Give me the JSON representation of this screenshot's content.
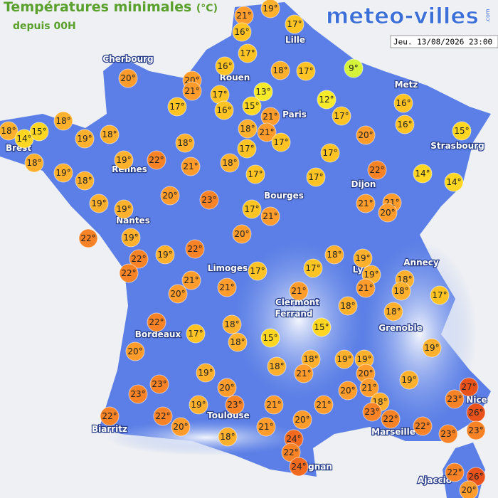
{
  "title": "Températures minimales",
  "unit": "(°C)",
  "subtitle": "depuis 00H",
  "logo": "meteo-villes",
  "logo_suffix": ".com",
  "datetime": "Jeu. 13/08/2026 23:00",
  "cities": [
    "Lille",
    "Cherbourg",
    "Rouen",
    "Paris",
    "Metz",
    "Strasbourg",
    "Brest",
    "Rennes",
    "Dijon",
    "Bourges",
    "Nantes",
    "Limoges",
    "Ly",
    "Annecy",
    "Clermont",
    "Ferrand",
    "Grenoble",
    "Bordeaux",
    "Toulouse",
    "Biarritz",
    "Marseille",
    "Nice",
    "ignan",
    "Ajaccio"
  ],
  "markers": [
    {
      "value": 21,
      "label": "21°"
    },
    {
      "value": 19,
      "label": "19°"
    },
    {
      "value": 17,
      "label": "17°"
    },
    {
      "value": 16,
      "label": "16°"
    },
    {
      "value": 17,
      "label": "17°"
    },
    {
      "value": 16,
      "label": "16°"
    },
    {
      "value": 20,
      "label": "20°"
    },
    {
      "value": 21,
      "label": "21°"
    },
    {
      "value": 17,
      "label": "17°"
    },
    {
      "value": 16,
      "label": "16°"
    },
    {
      "value": 13,
      "label": "13°"
    },
    {
      "value": 15,
      "label": "15°"
    },
    {
      "value": 18,
      "label": "18°"
    },
    {
      "value": 17,
      "label": "17°"
    },
    {
      "value": 9,
      "label": "9°"
    },
    {
      "value": 12,
      "label": "12°"
    },
    {
      "value": 21,
      "label": "21°"
    },
    {
      "value": 21,
      "label": "21°"
    },
    {
      "value": 18,
      "label": "18°"
    },
    {
      "value": 17,
      "label": "17°"
    },
    {
      "value": 17,
      "label": "17°"
    },
    {
      "value": 17,
      "label": "17°"
    },
    {
      "value": 20,
      "label": "20°"
    },
    {
      "value": 16,
      "label": "16°"
    },
    {
      "value": 16,
      "label": "16°"
    },
    {
      "value": 15,
      "label": "15°"
    },
    {
      "value": 17,
      "label": "17°"
    },
    {
      "value": 20,
      "label": "20°"
    },
    {
      "value": 18,
      "label": "18°"
    },
    {
      "value": 14,
      "label": "14°"
    },
    {
      "value": 15,
      "label": "15°"
    },
    {
      "value": 18,
      "label": "18°"
    },
    {
      "value": 19,
      "label": "19°"
    },
    {
      "value": 18,
      "label": "18°"
    },
    {
      "value": 18,
      "label": "18°"
    },
    {
      "value": 19,
      "label": "19°"
    },
    {
      "value": 22,
      "label": "22°"
    },
    {
      "value": 18,
      "label": "18°"
    },
    {
      "value": 21,
      "label": "21°"
    },
    {
      "value": 18,
      "label": "18°"
    },
    {
      "value": 17,
      "label": "17°"
    },
    {
      "value": 17,
      "label": "17°"
    },
    {
      "value": 17,
      "label": "17°"
    },
    {
      "value": 22,
      "label": "22°"
    },
    {
      "value": 14,
      "label": "14°"
    },
    {
      "value": 14,
      "label": "14°"
    },
    {
      "value": 19,
      "label": "19°"
    },
    {
      "value": 18,
      "label": "18°"
    },
    {
      "value": 19,
      "label": "19°"
    },
    {
      "value": 19,
      "label": "19°"
    },
    {
      "value": 20,
      "label": "20°"
    },
    {
      "value": 23,
      "label": "23°"
    },
    {
      "value": 17,
      "label": "17°"
    },
    {
      "value": 21,
      "label": "21°"
    },
    {
      "value": 21,
      "label": "21°"
    },
    {
      "value": 21,
      "label": "21°"
    },
    {
      "value": 20,
      "label": "20°"
    },
    {
      "value": 22,
      "label": "22°"
    },
    {
      "value": 19,
      "label": "19°"
    },
    {
      "value": 22,
      "label": "22°"
    },
    {
      "value": 22,
      "label": "22°"
    },
    {
      "value": 19,
      "label": "19°"
    },
    {
      "value": 22,
      "label": "22°"
    },
    {
      "value": 20,
      "label": "20°"
    },
    {
      "value": 17,
      "label": "17°"
    },
    {
      "value": 17,
      "label": "17°"
    },
    {
      "value": 18,
      "label": "18°"
    },
    {
      "value": 19,
      "label": "19°"
    },
    {
      "value": 19,
      "label": "19°"
    },
    {
      "value": 21,
      "label": "21°"
    },
    {
      "value": 18,
      "label": "18°"
    },
    {
      "value": 18,
      "label": "18°"
    },
    {
      "value": 17,
      "label": "17°"
    },
    {
      "value": 21,
      "label": "21°"
    },
    {
      "value": 20,
      "label": "20°"
    },
    {
      "value": 21,
      "label": "21°"
    },
    {
      "value": 21,
      "label": "21°"
    },
    {
      "value": 18,
      "label": "18°"
    },
    {
      "value": 18,
      "label": "18°"
    },
    {
      "value": 22,
      "label": "22°"
    },
    {
      "value": 17,
      "label": "17°"
    },
    {
      "value": 18,
      "label": "18°"
    },
    {
      "value": 18,
      "label": "18°"
    },
    {
      "value": 15,
      "label": "15°"
    },
    {
      "value": 15,
      "label": "15°"
    },
    {
      "value": 20,
      "label": "20°"
    },
    {
      "value": 19,
      "label": "19°"
    },
    {
      "value": 18,
      "label": "18°"
    },
    {
      "value": 18,
      "label": "18°"
    },
    {
      "value": 21,
      "label": "21°"
    },
    {
      "value": 19,
      "label": "19°"
    },
    {
      "value": 19,
      "label": "19°"
    },
    {
      "value": 20,
      "label": "20°"
    },
    {
      "value": 20,
      "label": "20°"
    },
    {
      "value": 21,
      "label": "21°"
    },
    {
      "value": 19,
      "label": "19°"
    },
    {
      "value": 19,
      "label": "19°"
    },
    {
      "value": 27,
      "label": "27°"
    },
    {
      "value": 23,
      "label": "23°"
    },
    {
      "value": 26,
      "label": "26°"
    },
    {
      "value": 23,
      "label": "23°"
    },
    {
      "value": 23,
      "label": "23°"
    },
    {
      "value": 23,
      "label": "23°"
    },
    {
      "value": 20,
      "label": "20°"
    },
    {
      "value": 19,
      "label": "19°"
    },
    {
      "value": 23,
      "label": "23°"
    },
    {
      "value": 21,
      "label": "21°"
    },
    {
      "value": 21,
      "label": "21°"
    },
    {
      "value": 18,
      "label": "18°"
    },
    {
      "value": 23,
      "label": "23°"
    },
    {
      "value": 22,
      "label": "22°"
    },
    {
      "value": 22,
      "label": "22°"
    },
    {
      "value": 23,
      "label": "23°"
    },
    {
      "value": 22,
      "label": "22°"
    },
    {
      "value": 22,
      "label": "22°"
    },
    {
      "value": 20,
      "label": "20°"
    },
    {
      "value": 18,
      "label": "18°"
    },
    {
      "value": 21,
      "label": "21°"
    },
    {
      "value": 20,
      "label": "20°"
    },
    {
      "value": 24,
      "label": "24°"
    },
    {
      "value": 22,
      "label": "22°"
    },
    {
      "value": 24,
      "label": "24°"
    },
    {
      "value": 22,
      "label": "22°"
    },
    {
      "value": 26,
      "label": "26°"
    },
    {
      "value": 20,
      "label": "20°"
    }
  ]
}
